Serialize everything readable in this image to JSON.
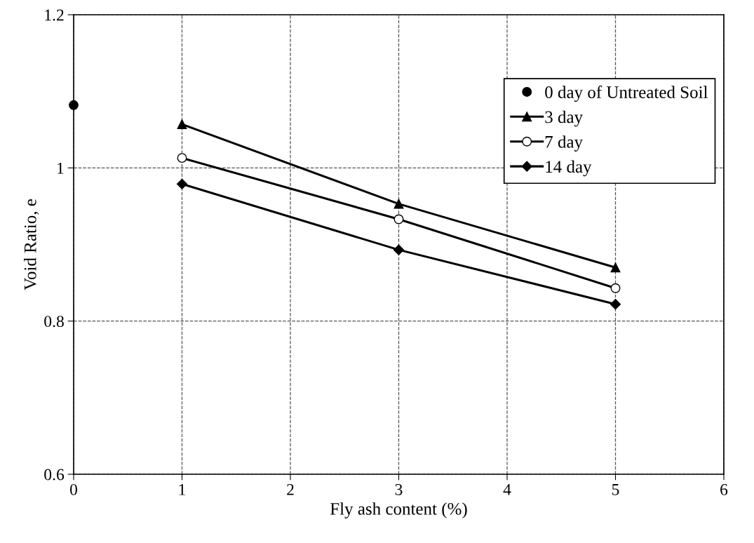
{
  "chart_data": {
    "type": "line",
    "xlabel": "Fly ash content (%)",
    "ylabel": "Void Ratio, e",
    "xlim": [
      0,
      6
    ],
    "xticks": [
      0,
      1,
      2,
      3,
      4,
      5,
      6
    ],
    "ylim": [
      0.6,
      1.2
    ],
    "yticks": [
      0.6,
      0.8,
      1,
      1.2
    ],
    "grid": true,
    "legend": "top right",
    "line_style": "solid",
    "series": [
      {
        "name": "0 day of Untreated Soil",
        "type": "scatter",
        "marker": "circle",
        "color": "#000000",
        "x": [
          0
        ],
        "values": [
          1.082
        ]
      },
      {
        "name": "3 day",
        "marker": "triangle",
        "color": "#000000",
        "x": [
          1,
          3,
          5
        ],
        "values": [
          1.057,
          0.953,
          0.87
        ]
      },
      {
        "name": "7 day",
        "marker": "circle",
        "color": "#000000",
        "x": [
          1,
          3,
          5
        ],
        "values": [
          1.013,
          0.933,
          0.843
        ]
      },
      {
        "name": "14 day",
        "marker": "diamond",
        "color": "#000000",
        "x": [
          1,
          3,
          5
        ],
        "values": [
          0.979,
          0.893,
          0.822
        ]
      }
    ]
  }
}
